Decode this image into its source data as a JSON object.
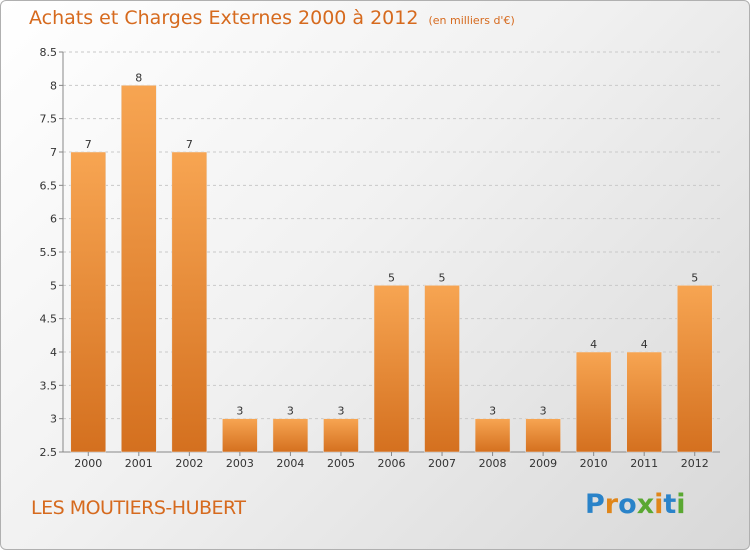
{
  "header": {
    "title": "Achats et Charges Externes 2000 à 2012",
    "subtitle": "(en milliers d'€)"
  },
  "footer": {
    "place": "LES MOUTIERS-HUBERT",
    "brand": "Proxiti",
    "brand_letters": [
      {
        "ch": "P",
        "color": "#2a83c9"
      },
      {
        "ch": "r",
        "color": "#e0861a"
      },
      {
        "ch": "o",
        "color": "#2a83c9"
      },
      {
        "ch": "x",
        "color": "#5aa832"
      },
      {
        "ch": "i",
        "color": "#e0861a"
      },
      {
        "ch": "t",
        "color": "#2a83c9"
      },
      {
        "ch": "i",
        "color": "#5aa832"
      }
    ]
  },
  "colors": {
    "bar_top": "#f7a552",
    "bar_bottom": "#d4701f",
    "accent": "#d66a1e",
    "grid": "#c9c9c9",
    "text": "#333333"
  },
  "chart_data": {
    "type": "bar",
    "categories": [
      "2000",
      "2001",
      "2002",
      "2003",
      "2004",
      "2005",
      "2006",
      "2007",
      "2008",
      "2009",
      "2010",
      "2011",
      "2012"
    ],
    "values": [
      7,
      8,
      7,
      3,
      3,
      3,
      5,
      5,
      3,
      3,
      4,
      4,
      5
    ],
    "title": "Achats et Charges Externes 2000 à 2012",
    "subtitle": "(en milliers d'€)",
    "ylim": [
      2.5,
      8.5
    ],
    "yticks": [
      "2.5",
      "3",
      "3.5",
      "4",
      "4.5",
      "5",
      "5.5",
      "6",
      "6.5",
      "7",
      "7.5",
      "8",
      "8.5"
    ],
    "grid": true
  }
}
